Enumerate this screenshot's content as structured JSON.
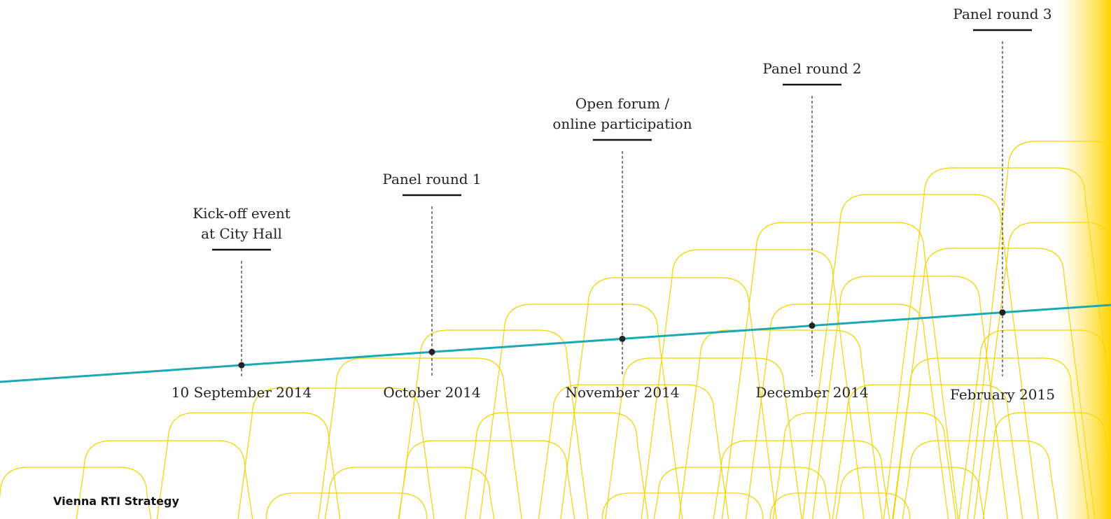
{
  "events": [
    {
      "label_lines": [
        "Kick-off event",
        "at City Hall"
      ],
      "date": "10 September 2014"
    },
    {
      "label_lines": [
        "Panel round 1"
      ],
      "date": "October 2014"
    },
    {
      "label_lines": [
        "Open forum /",
        "online participation"
      ],
      "date": "November 2014"
    },
    {
      "label_lines": [
        "Panel round 2"
      ],
      "date": "December 2014"
    },
    {
      "label_lines": [
        "Panel round 3"
      ],
      "date": "February 2015"
    }
  ],
  "footer": {
    "title": "Vienna RTI Strategy"
  }
}
